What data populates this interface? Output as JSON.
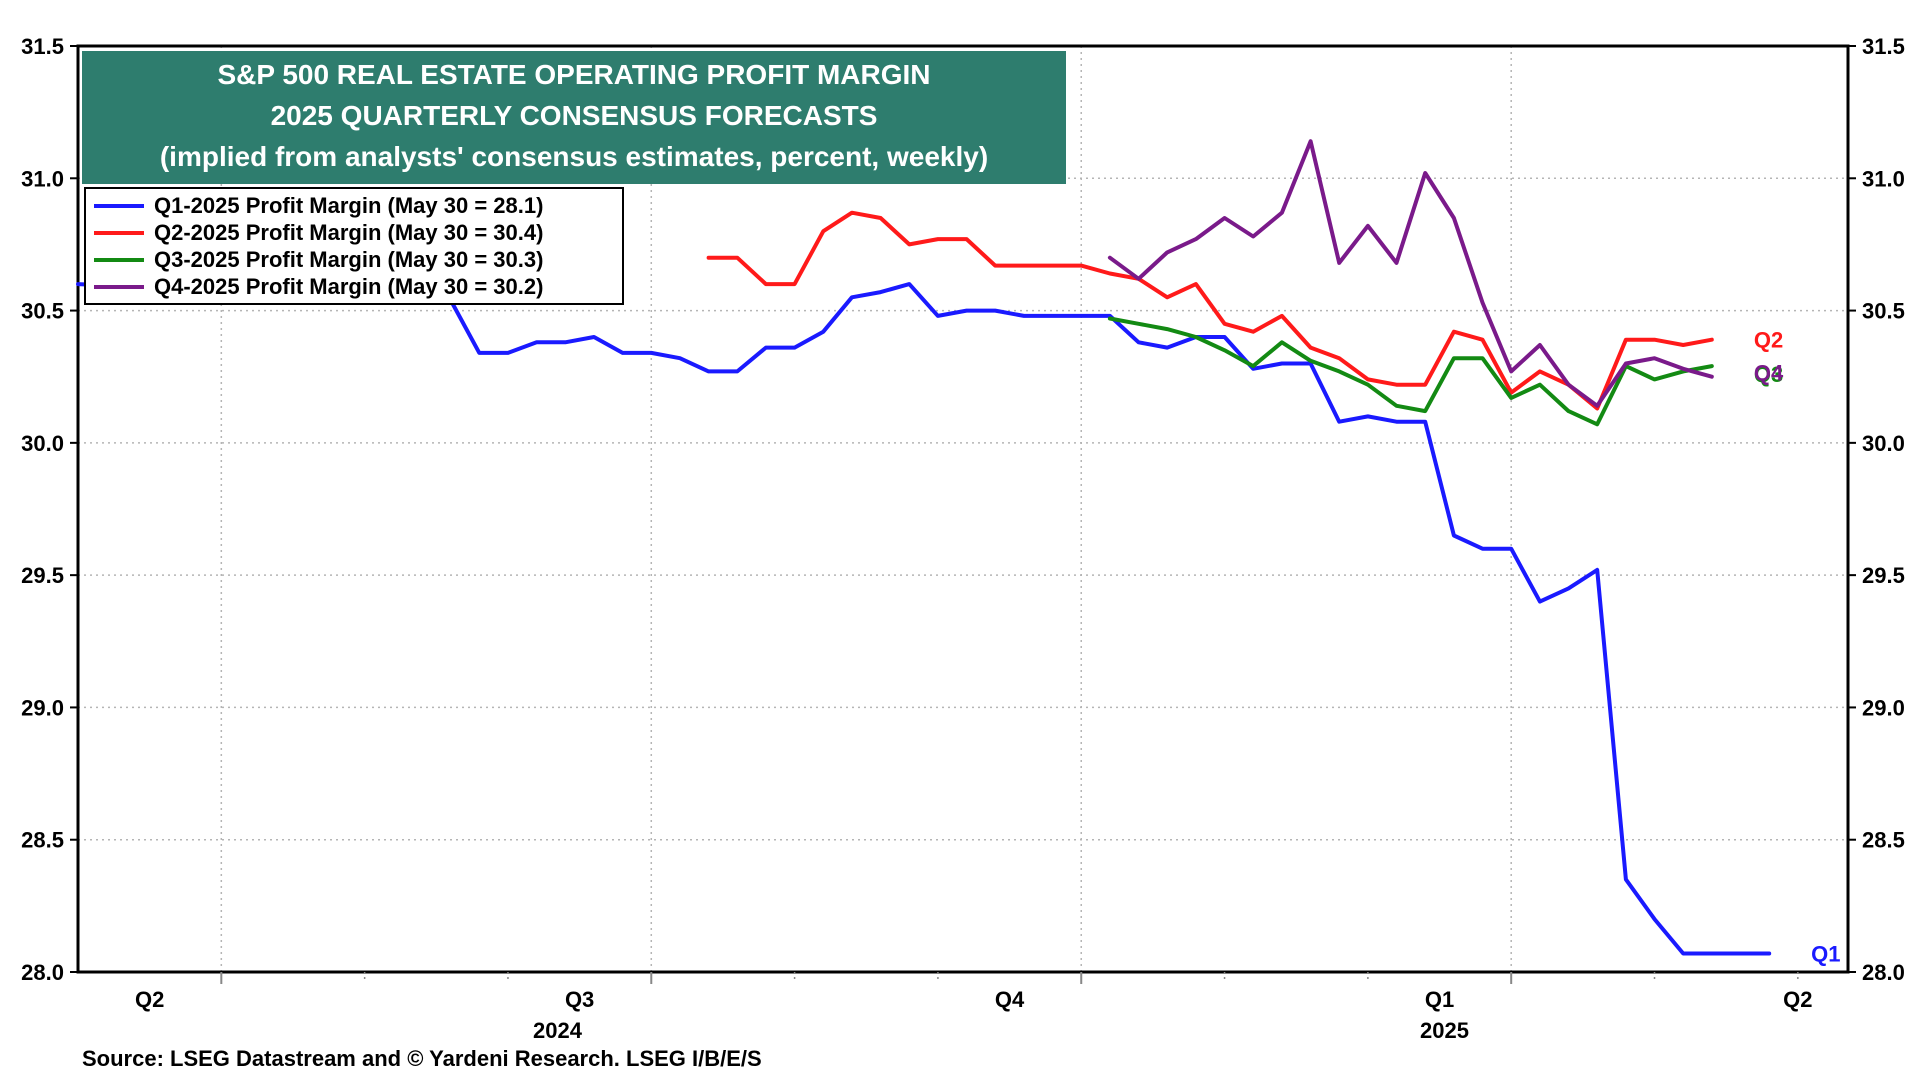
{
  "chart_data": {
    "type": "line",
    "title": "S&P 500 REAL ESTATE OPERATING PROFIT MARGIN",
    "subtitle": "2025 QUARTERLY CONSENSUS FORECASTS",
    "subtitle2": "(implied from analysts' consensus estimates, percent, weekly)",
    "ylim": [
      28.0,
      31.5
    ],
    "yticks": [
      "28.0",
      "28.5",
      "29.0",
      "29.5",
      "30.0",
      "30.5",
      "31.0",
      "31.5"
    ],
    "xlim": [
      0,
      12.35
    ],
    "quarter_ticks": [
      {
        "label": "Q2",
        "pos": 0.5
      },
      {
        "label": "Q3",
        "pos": 3.5
      },
      {
        "label": "Q4",
        "pos": 6.5
      },
      {
        "label": "Q1",
        "pos": 9.5
      },
      {
        "label": "Q2",
        "pos": 12.5
      }
    ],
    "year_labels": [
      {
        "label": "2024",
        "pos": 3.5
      },
      {
        "label": "2025",
        "pos": 10.0
      }
    ],
    "series": [
      {
        "name": "Q1",
        "legend": "Q1-2025 Profit Margin (May 30 = 28.1)",
        "color": "#1a1aff",
        "end_label": "Q1",
        "points": [
          [
            0.0,
            30.6
          ],
          [
            2.6,
            30.54
          ],
          [
            2.8,
            30.34
          ],
          [
            3.0,
            30.34
          ],
          [
            3.2,
            30.38
          ],
          [
            3.4,
            30.38
          ],
          [
            3.6,
            30.4
          ],
          [
            3.8,
            30.34
          ],
          [
            4.0,
            30.34
          ],
          [
            4.2,
            30.32
          ],
          [
            4.4,
            30.27
          ],
          [
            4.6,
            30.27
          ],
          [
            4.8,
            30.36
          ],
          [
            5.0,
            30.36
          ],
          [
            5.2,
            30.42
          ],
          [
            5.4,
            30.55
          ],
          [
            5.6,
            30.57
          ],
          [
            5.8,
            30.6
          ],
          [
            6.0,
            30.48
          ],
          [
            6.2,
            30.5
          ],
          [
            6.4,
            30.5
          ],
          [
            6.6,
            30.48
          ],
          [
            6.8,
            30.48
          ],
          [
            7.0,
            30.48
          ],
          [
            7.2,
            30.48
          ],
          [
            7.4,
            30.38
          ],
          [
            7.6,
            30.36
          ],
          [
            7.8,
            30.4
          ],
          [
            8.0,
            30.4
          ],
          [
            8.2,
            30.28
          ],
          [
            8.4,
            30.3
          ],
          [
            8.6,
            30.3
          ],
          [
            8.8,
            30.08
          ],
          [
            9.0,
            30.1
          ],
          [
            9.2,
            30.08
          ],
          [
            9.4,
            30.08
          ],
          [
            9.6,
            29.65
          ],
          [
            9.8,
            29.6
          ],
          [
            10.0,
            29.6
          ],
          [
            10.2,
            29.4
          ],
          [
            10.4,
            29.45
          ],
          [
            10.6,
            29.52
          ],
          [
            10.8,
            28.35
          ],
          [
            11.0,
            28.2
          ],
          [
            11.2,
            28.07
          ],
          [
            11.4,
            28.07
          ],
          [
            11.6,
            28.07
          ],
          [
            11.8,
            28.07
          ]
        ]
      },
      {
        "name": "Q2",
        "legend": "Q2-2025 Profit Margin (May 30 = 30.4)",
        "color": "#ff1a1a",
        "end_label": "Q2",
        "points": [
          [
            4.4,
            30.7
          ],
          [
            4.6,
            30.7
          ],
          [
            4.8,
            30.6
          ],
          [
            5.0,
            30.6
          ],
          [
            5.2,
            30.8
          ],
          [
            5.4,
            30.87
          ],
          [
            5.6,
            30.85
          ],
          [
            5.8,
            30.75
          ],
          [
            6.0,
            30.77
          ],
          [
            6.2,
            30.77
          ],
          [
            6.4,
            30.67
          ],
          [
            6.6,
            30.67
          ],
          [
            6.8,
            30.67
          ],
          [
            7.0,
            30.67
          ],
          [
            7.2,
            30.64
          ],
          [
            7.4,
            30.62
          ],
          [
            7.6,
            30.55
          ],
          [
            7.8,
            30.6
          ],
          [
            8.0,
            30.45
          ],
          [
            8.2,
            30.42
          ],
          [
            8.4,
            30.48
          ],
          [
            8.6,
            30.36
          ],
          [
            8.8,
            30.32
          ],
          [
            9.0,
            30.24
          ],
          [
            9.2,
            30.22
          ],
          [
            9.4,
            30.22
          ],
          [
            9.6,
            30.42
          ],
          [
            9.8,
            30.39
          ],
          [
            10.0,
            30.19
          ],
          [
            10.2,
            30.27
          ],
          [
            10.4,
            30.22
          ],
          [
            10.6,
            30.13
          ],
          [
            10.8,
            30.39
          ],
          [
            11.0,
            30.39
          ],
          [
            11.2,
            30.37
          ],
          [
            11.4,
            30.39
          ]
        ]
      },
      {
        "name": "Q3",
        "legend": "Q3-2025 Profit Margin (May 30 = 30.3)",
        "color": "#138a13",
        "end_label": "Q3",
        "points": [
          [
            7.2,
            30.47
          ],
          [
            7.4,
            30.45
          ],
          [
            7.6,
            30.43
          ],
          [
            7.8,
            30.4
          ],
          [
            8.0,
            30.35
          ],
          [
            8.2,
            30.29
          ],
          [
            8.4,
            30.38
          ],
          [
            8.6,
            30.31
          ],
          [
            8.8,
            30.27
          ],
          [
            9.0,
            30.22
          ],
          [
            9.2,
            30.14
          ],
          [
            9.4,
            30.12
          ],
          [
            9.6,
            30.32
          ],
          [
            9.8,
            30.32
          ],
          [
            10.0,
            30.17
          ],
          [
            10.2,
            30.22
          ],
          [
            10.4,
            30.12
          ],
          [
            10.6,
            30.07
          ],
          [
            10.8,
            30.29
          ],
          [
            11.0,
            30.24
          ],
          [
            11.2,
            30.27
          ],
          [
            11.4,
            30.29
          ]
        ]
      },
      {
        "name": "Q4",
        "legend": "Q4-2025 Profit Margin (May 30 = 30.2)",
        "color": "#7a1a8a",
        "end_label": "Q4",
        "points": [
          [
            7.2,
            30.7
          ],
          [
            7.4,
            30.62
          ],
          [
            7.6,
            30.72
          ],
          [
            7.8,
            30.77
          ],
          [
            8.0,
            30.85
          ],
          [
            8.2,
            30.78
          ],
          [
            8.4,
            30.87
          ],
          [
            8.6,
            31.14
          ],
          [
            8.8,
            30.68
          ],
          [
            9.0,
            30.82
          ],
          [
            9.2,
            30.68
          ],
          [
            9.4,
            31.02
          ],
          [
            9.6,
            30.85
          ],
          [
            9.8,
            30.53
          ],
          [
            10.0,
            30.27
          ],
          [
            10.2,
            30.37
          ],
          [
            10.4,
            30.22
          ],
          [
            10.6,
            30.14
          ],
          [
            10.8,
            30.3
          ],
          [
            11.0,
            30.32
          ],
          [
            11.2,
            30.28
          ],
          [
            11.4,
            30.25
          ]
        ]
      }
    ],
    "source": "Source: LSEG Datastream and © Yardeni Research. LSEG I/B/E/S"
  }
}
